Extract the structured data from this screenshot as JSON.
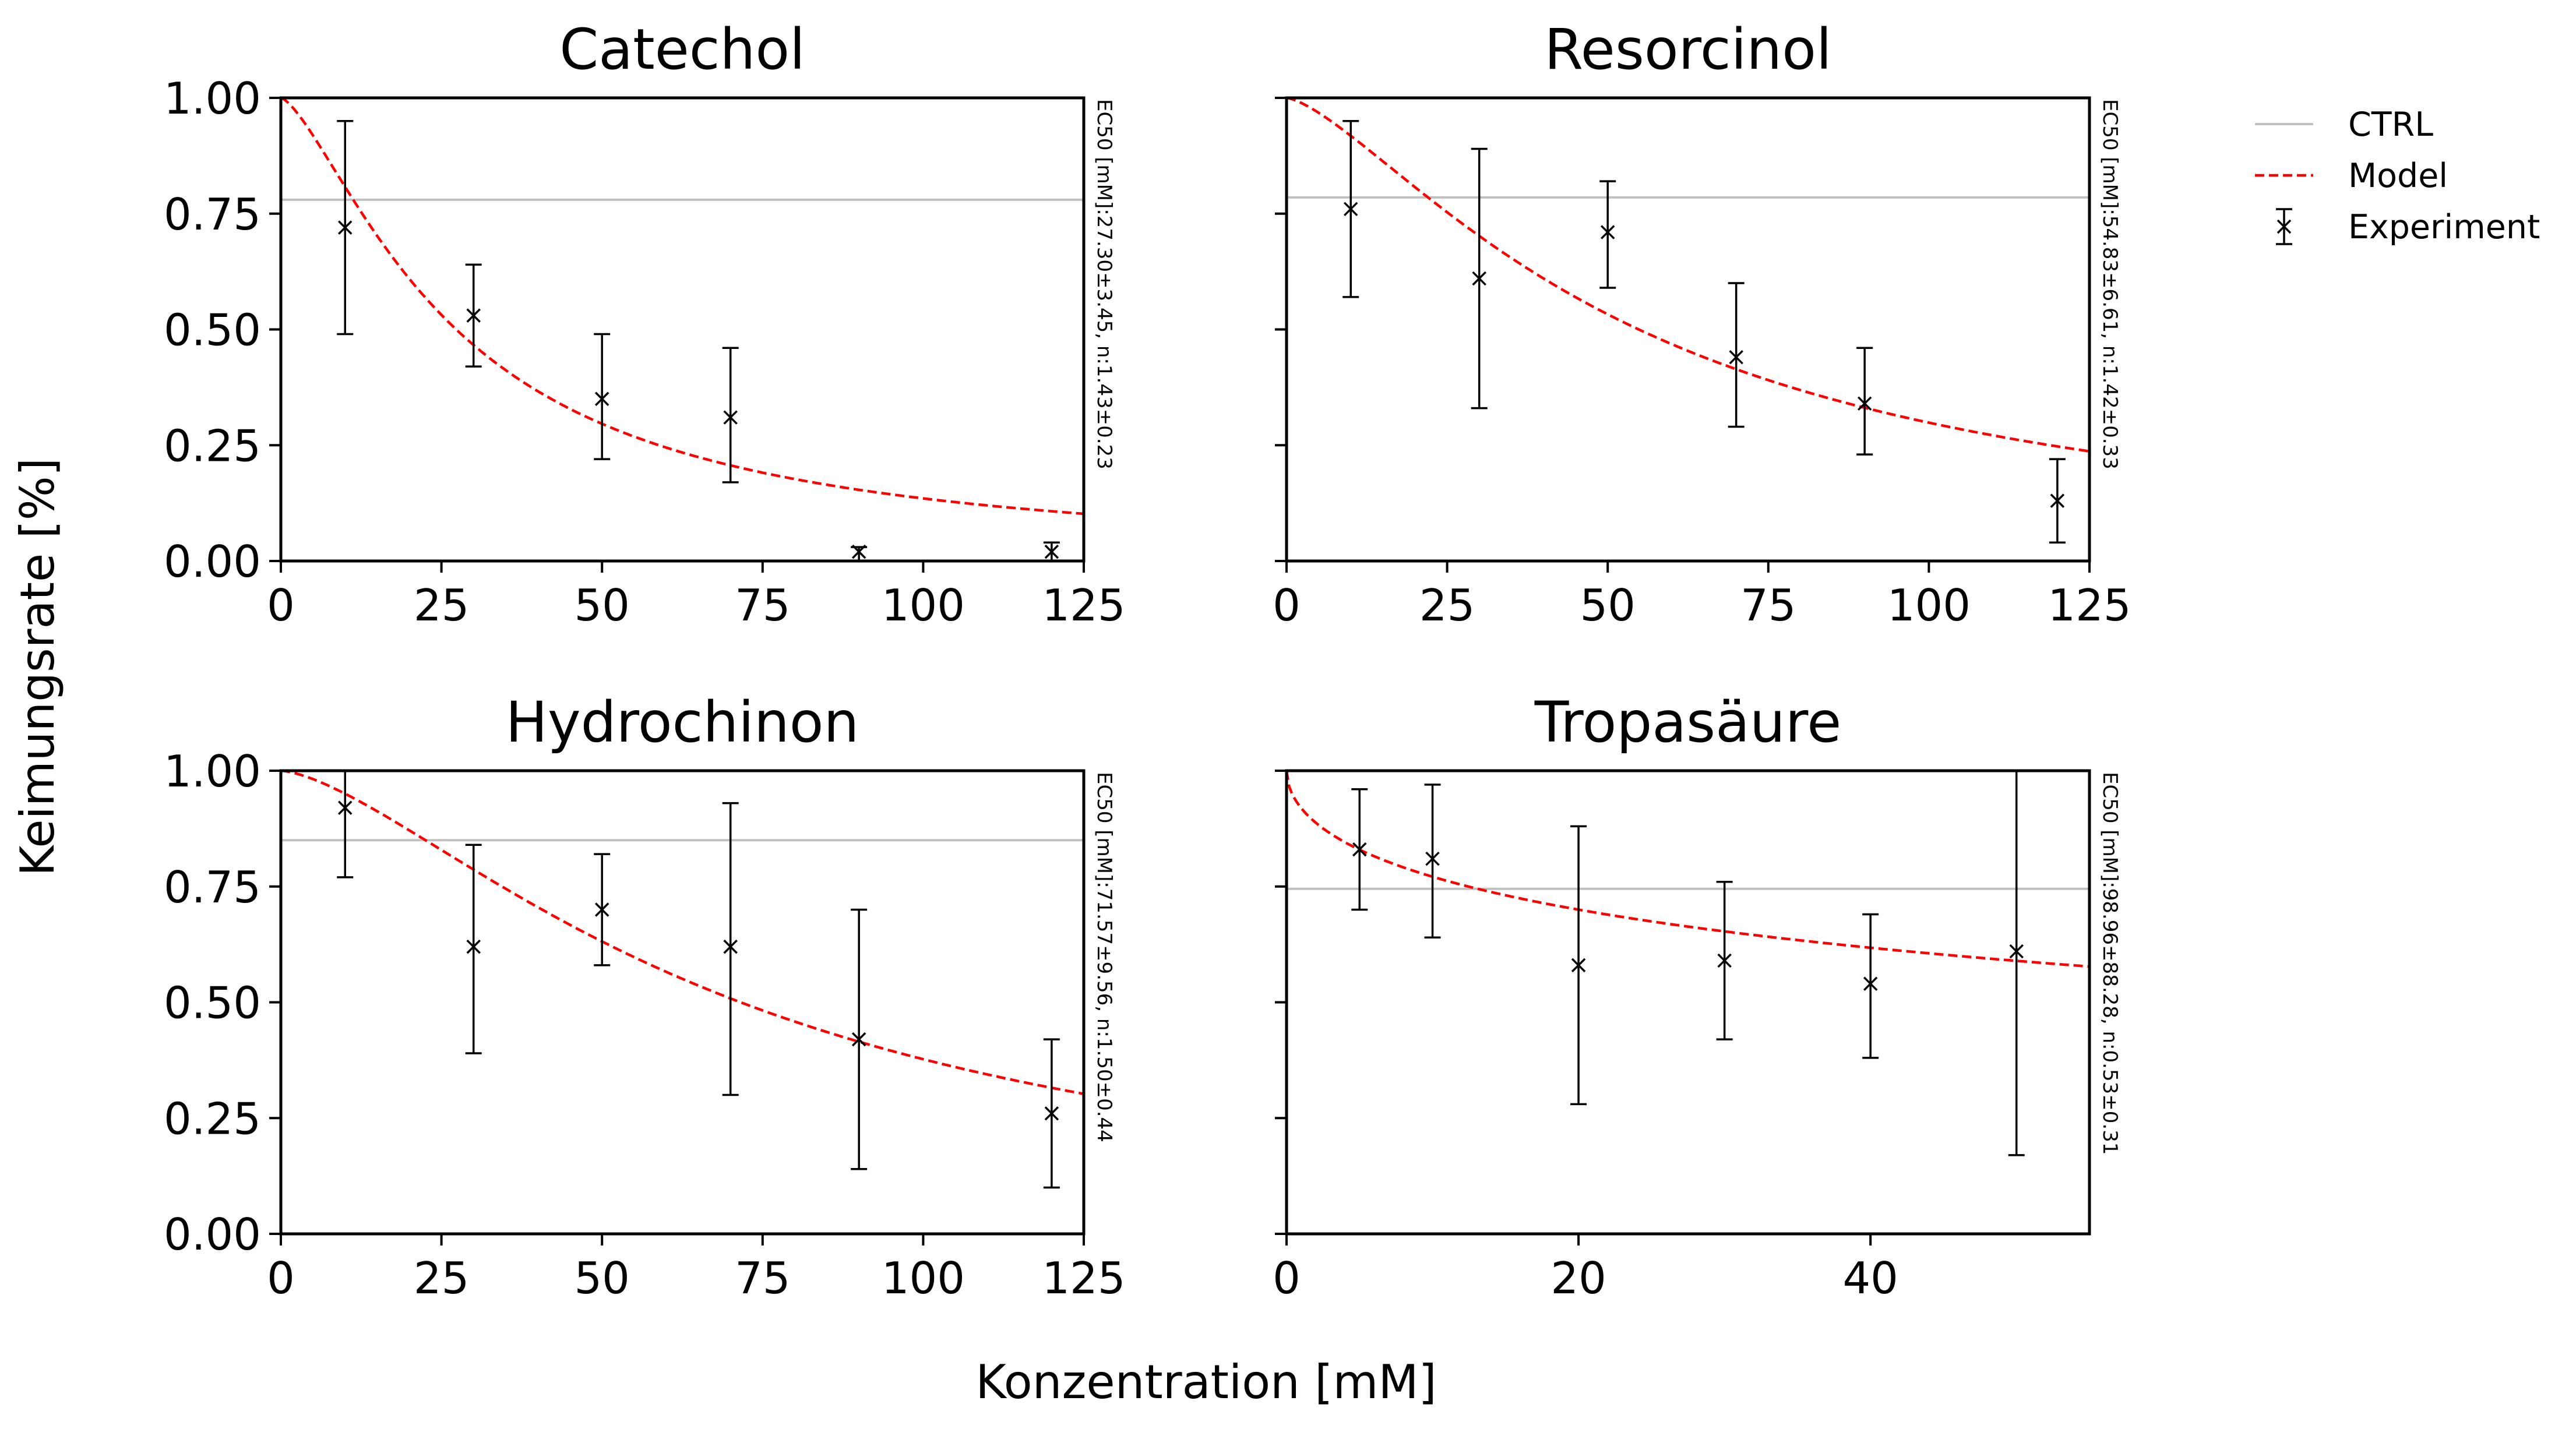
{
  "figure": {
    "ylabel": "Keimungsrate [%]",
    "xlabel": "Konzentration [mM]"
  },
  "legend": {
    "placement": "top-right",
    "items": [
      {
        "label": "CTRL",
        "style": "solid",
        "color": "#c0c0c0"
      },
      {
        "label": "Model",
        "style": "dashed",
        "color": "#ff0000"
      },
      {
        "label": "Experiment",
        "style": "errorbar-x",
        "color": "#000000"
      }
    ]
  },
  "chart_data": [
    {
      "type": "scatter",
      "title": "Catechol",
      "annotation": "EC50 [mM]:27.30±3.45, n:1.43±0.23",
      "xlim": [
        0,
        125
      ],
      "ylim": [
        0,
        1
      ],
      "xticks": [
        0,
        25,
        50,
        75,
        100,
        125
      ],
      "xtick_labels": [
        "0",
        "25",
        "50",
        "75",
        "100",
        "125"
      ],
      "yticks": [
        0,
        0.25,
        0.5,
        0.75,
        1.0
      ],
      "ytick_labels": [
        "0.00",
        "0.25",
        "0.50",
        "0.75",
        "1.00"
      ],
      "show_yticklabels": true,
      "ctrl": 0.78,
      "model": {
        "ec50": 27.3,
        "n": 1.43
      },
      "experiment": {
        "x": [
          10,
          30,
          50,
          70,
          90,
          120
        ],
        "y": [
          0.72,
          0.53,
          0.35,
          0.31,
          0.02,
          0.02
        ],
        "ylow": [
          0.49,
          0.42,
          0.22,
          0.17,
          0.0,
          0.0
        ],
        "yhigh": [
          0.95,
          0.64,
          0.49,
          0.46,
          0.03,
          0.04
        ]
      }
    },
    {
      "type": "scatter",
      "title": "Resorcinol",
      "annotation": "EC50 [mM]:54.83±6.61, n:1.42±0.33",
      "xlim": [
        0,
        125
      ],
      "ylim": [
        0,
        1
      ],
      "xticks": [
        0,
        25,
        50,
        75,
        100,
        125
      ],
      "xtick_labels": [
        "0",
        "25",
        "50",
        "75",
        "100",
        "125"
      ],
      "yticks": [
        0,
        0.25,
        0.5,
        0.75,
        1.0
      ],
      "ytick_labels": [
        "0.00",
        "0.25",
        "0.50",
        "0.75",
        "1.00"
      ],
      "show_yticklabels": false,
      "ctrl": 0.785,
      "model": {
        "ec50": 54.83,
        "n": 1.42
      },
      "experiment": {
        "x": [
          10,
          30,
          50,
          70,
          90,
          120
        ],
        "y": [
          0.76,
          0.61,
          0.71,
          0.44,
          0.34,
          0.13
        ],
        "ylow": [
          0.57,
          0.33,
          0.59,
          0.29,
          0.23,
          0.04
        ],
        "yhigh": [
          0.95,
          0.89,
          0.82,
          0.6,
          0.46,
          0.22
        ]
      }
    },
    {
      "type": "scatter",
      "title": "Hydrochinon",
      "annotation": "EC50 [mM]:71.57±9.56, n:1.50±0.44",
      "xlim": [
        0,
        125
      ],
      "ylim": [
        0,
        1
      ],
      "xticks": [
        0,
        25,
        50,
        75,
        100,
        125
      ],
      "xtick_labels": [
        "0",
        "25",
        "50",
        "75",
        "100",
        "125"
      ],
      "yticks": [
        0,
        0.25,
        0.5,
        0.75,
        1.0
      ],
      "ytick_labels": [
        "0.00",
        "0.25",
        "0.50",
        "0.75",
        "1.00"
      ],
      "show_yticklabels": true,
      "ctrl": 0.85,
      "model": {
        "ec50": 71.57,
        "n": 1.5
      },
      "experiment": {
        "x": [
          10,
          30,
          50,
          70,
          90,
          120
        ],
        "y": [
          0.92,
          0.62,
          0.7,
          0.62,
          0.42,
          0.26
        ],
        "ylow": [
          0.77,
          0.39,
          0.58,
          0.3,
          0.14,
          0.1
        ],
        "yhigh": [
          1.0,
          0.84,
          0.82,
          0.93,
          0.7,
          0.42
        ]
      }
    },
    {
      "type": "scatter",
      "title": "Tropasäure",
      "annotation": "EC50 [mM]:98.96±88.28, n:0.53±0.31",
      "xlim": [
        0,
        55
      ],
      "ylim": [
        0,
        1
      ],
      "xticks": [
        0,
        20,
        40
      ],
      "xtick_labels": [
        "0",
        "20",
        "40"
      ],
      "yticks": [
        0,
        0.25,
        0.5,
        0.75,
        1.0
      ],
      "ytick_labels": [
        "0.00",
        "0.25",
        "0.50",
        "0.75",
        "1.00"
      ],
      "show_yticklabels": false,
      "ctrl": 0.745,
      "model": {
        "ec50": 98.96,
        "n": 0.53
      },
      "experiment": {
        "x": [
          5,
          10,
          20,
          30,
          40,
          50
        ],
        "y": [
          0.83,
          0.81,
          0.58,
          0.59,
          0.54,
          0.61
        ],
        "ylow": [
          0.7,
          0.64,
          0.28,
          0.42,
          0.38,
          0.17
        ],
        "yhigh": [
          0.96,
          0.97,
          0.88,
          0.76,
          0.69,
          1.0
        ]
      }
    }
  ]
}
